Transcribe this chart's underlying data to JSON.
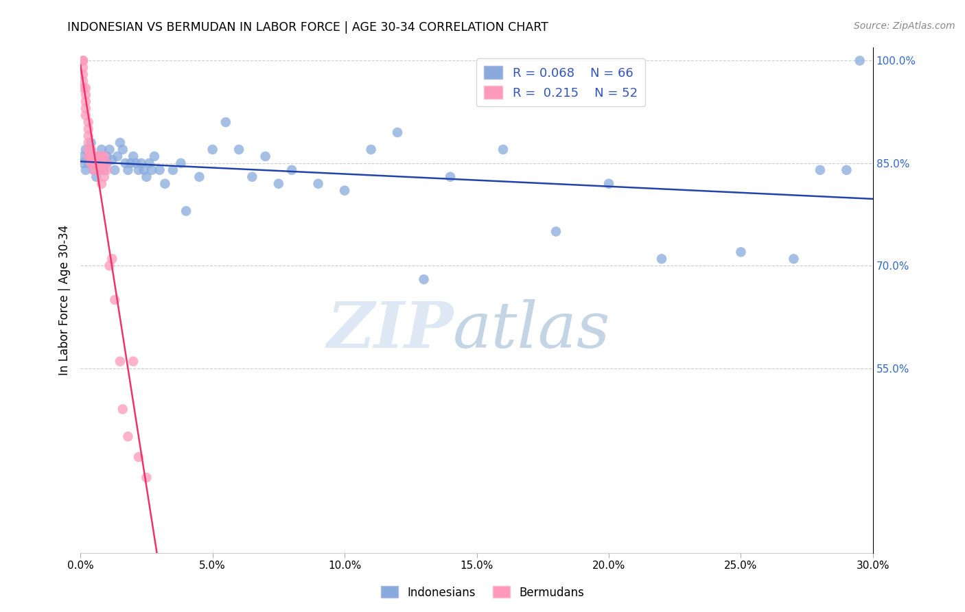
{
  "title": "INDONESIAN VS BERMUDAN IN LABOR FORCE | AGE 30-34 CORRELATION CHART",
  "source": "Source: ZipAtlas.com",
  "ylabel": "In Labor Force | Age 30-34",
  "xlim": [
    0.0,
    0.3
  ],
  "ylim": [
    0.28,
    1.02
  ],
  "xtick_labels": [
    "0.0%",
    "5.0%",
    "10.0%",
    "15.0%",
    "20.0%",
    "25.0%",
    "30.0%"
  ],
  "xtick_vals": [
    0.0,
    0.05,
    0.1,
    0.15,
    0.2,
    0.25,
    0.3
  ],
  "right_ytick_labels": [
    "100.0%",
    "85.0%",
    "70.0%",
    "55.0%"
  ],
  "right_ytick_vals": [
    1.0,
    0.85,
    0.7,
    0.55
  ],
  "grid_color": "#cccccc",
  "watermark_zip": "ZIP",
  "watermark_atlas": "atlas",
  "legend_R1": "0.068",
  "legend_N1": "66",
  "legend_R2": "0.215",
  "legend_N2": "52",
  "blue_color": "#88aadd",
  "pink_color": "#ff99bb",
  "blue_line_color": "#2244aa",
  "pink_line_color": "#ee3366",
  "indonesian_x": [
    0.001,
    0.001,
    0.002,
    0.002,
    0.003,
    0.003,
    0.004,
    0.004,
    0.005,
    0.005,
    0.006,
    0.006,
    0.007,
    0.007,
    0.008,
    0.008,
    0.009,
    0.009,
    0.01,
    0.01,
    0.011,
    0.012,
    0.013,
    0.014,
    0.015,
    0.016,
    0.017,
    0.018,
    0.019,
    0.02,
    0.021,
    0.022,
    0.023,
    0.024,
    0.025,
    0.026,
    0.027,
    0.028,
    0.03,
    0.032,
    0.035,
    0.038,
    0.04,
    0.045,
    0.05,
    0.055,
    0.06,
    0.065,
    0.07,
    0.075,
    0.08,
    0.09,
    0.1,
    0.11,
    0.12,
    0.13,
    0.14,
    0.16,
    0.18,
    0.2,
    0.22,
    0.25,
    0.27,
    0.28,
    0.29,
    0.295
  ],
  "indonesian_y": [
    0.86,
    0.85,
    0.87,
    0.84,
    0.85,
    0.86,
    0.88,
    0.87,
    0.85,
    0.84,
    0.86,
    0.83,
    0.85,
    0.84,
    0.86,
    0.87,
    0.85,
    0.84,
    0.86,
    0.85,
    0.87,
    0.855,
    0.84,
    0.86,
    0.88,
    0.87,
    0.85,
    0.84,
    0.85,
    0.86,
    0.85,
    0.84,
    0.85,
    0.84,
    0.83,
    0.85,
    0.84,
    0.86,
    0.84,
    0.82,
    0.84,
    0.85,
    0.78,
    0.83,
    0.87,
    0.91,
    0.87,
    0.83,
    0.86,
    0.82,
    0.84,
    0.82,
    0.81,
    0.87,
    0.895,
    0.68,
    0.83,
    0.87,
    0.75,
    0.82,
    0.71,
    0.72,
    0.71,
    0.84,
    0.84,
    1.0
  ],
  "bermudan_x": [
    0.001,
    0.001,
    0.001,
    0.001,
    0.001,
    0.001,
    0.002,
    0.002,
    0.002,
    0.002,
    0.002,
    0.003,
    0.003,
    0.003,
    0.003,
    0.003,
    0.003,
    0.004,
    0.004,
    0.004,
    0.004,
    0.004,
    0.005,
    0.005,
    0.005,
    0.005,
    0.005,
    0.006,
    0.006,
    0.006,
    0.006,
    0.007,
    0.007,
    0.007,
    0.007,
    0.008,
    0.008,
    0.008,
    0.008,
    0.009,
    0.009,
    0.01,
    0.01,
    0.011,
    0.012,
    0.013,
    0.015,
    0.016,
    0.018,
    0.02,
    0.022,
    0.025
  ],
  "bermudan_y": [
    1.0,
    1.0,
    0.99,
    0.98,
    0.97,
    0.96,
    0.96,
    0.95,
    0.94,
    0.93,
    0.92,
    0.91,
    0.9,
    0.89,
    0.88,
    0.87,
    0.86,
    0.87,
    0.86,
    0.86,
    0.85,
    0.85,
    0.86,
    0.85,
    0.85,
    0.85,
    0.84,
    0.86,
    0.86,
    0.85,
    0.85,
    0.86,
    0.85,
    0.85,
    0.84,
    0.86,
    0.85,
    0.84,
    0.82,
    0.86,
    0.83,
    0.85,
    0.84,
    0.7,
    0.71,
    0.65,
    0.56,
    0.49,
    0.45,
    0.56,
    0.42,
    0.39
  ]
}
